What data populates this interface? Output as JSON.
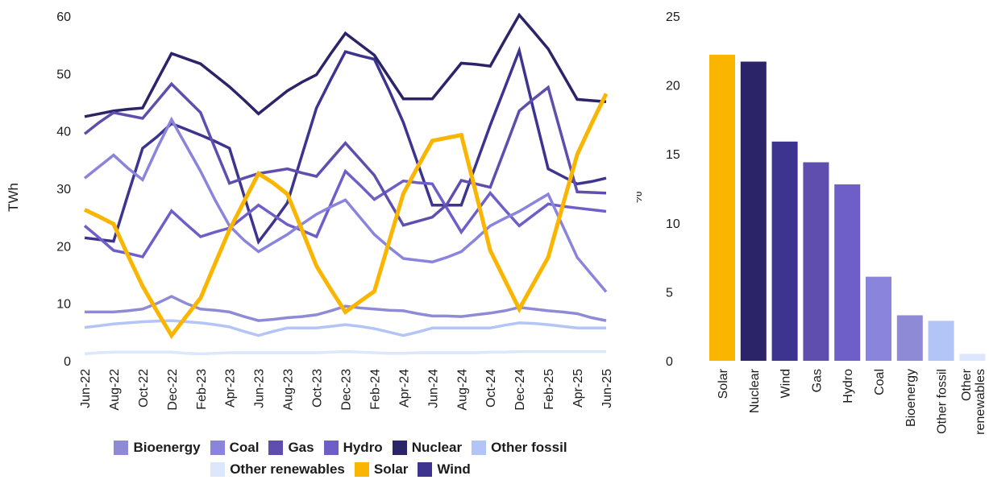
{
  "chart_data": [
    {
      "type": "line",
      "ylabel": "TWh",
      "ylim": [
        0,
        60
      ],
      "yticks": [
        0,
        10,
        20,
        30,
        40,
        50,
        60
      ],
      "x": [
        "Jun-22",
        "Jul-22",
        "Aug-22",
        "Sep-22",
        "Oct-22",
        "Nov-22",
        "Dec-22",
        "Jan-23",
        "Feb-23",
        "Mar-23",
        "Apr-23",
        "May-23",
        "Jun-23",
        "Jul-23",
        "Aug-23",
        "Sep-23",
        "Oct-23",
        "Nov-23",
        "Dec-23",
        "Jan-24",
        "Feb-24",
        "Mar-24",
        "Apr-24",
        "May-24",
        "Jun-24",
        "Jul-24",
        "Aug-24",
        "Sep-24",
        "Oct-24",
        "Nov-24",
        "Dec-24",
        "Jan-25",
        "Feb-25",
        "Mar-25",
        "Apr-25",
        "May-25",
        "Jun-25"
      ],
      "xticklabels": [
        "Jun-22",
        "Aug-22",
        "Oct-22",
        "Dec-22",
        "Feb-23",
        "Apr-23",
        "Jun-23",
        "Aug-23",
        "Oct-23",
        "Dec-23",
        "Feb-24",
        "Apr-24",
        "Jun-24",
        "Aug-24",
        "Oct-24",
        "Dec-24",
        "Feb-25",
        "Apr-25",
        "Jun-25"
      ],
      "grid": false,
      "legend_position": "bottom",
      "series": [
        {
          "name": "Bioenergy",
          "color": "#8e8ad6",
          "values": [
            8.5,
            8.5,
            8.5,
            8.7,
            9,
            10,
            11.2,
            10,
            9,
            8.8,
            8.5,
            7.7,
            7,
            7.2,
            7.5,
            7.7,
            8,
            8.7,
            9.5,
            9.2,
            9,
            8.8,
            8.7,
            8.2,
            7.8,
            7.8,
            7.7,
            8,
            8.3,
            8.7,
            9.3,
            9,
            8.7,
            8.5,
            8.2,
            7.5,
            7
          ]
        },
        {
          "name": "Coal",
          "color": "#8a84dc",
          "values": [
            31.8,
            33.8,
            35.8,
            33.5,
            31.5,
            37,
            42,
            37.5,
            33,
            28,
            23.5,
            21,
            19,
            20.5,
            22,
            23.8,
            25.5,
            26.8,
            28,
            25,
            22,
            19.8,
            17.8,
            17.5,
            17.2,
            18,
            19,
            21.2,
            23.5,
            24.8,
            26,
            27.5,
            29,
            23.5,
            18,
            15,
            12
          ]
        },
        {
          "name": "Gas",
          "color": "#5f4ead",
          "values": [
            39.5,
            41.5,
            43.2,
            42.7,
            42.2,
            45.2,
            48.2,
            45.7,
            43.2,
            37,
            30.9,
            31.8,
            32.6,
            33,
            33.4,
            32.7,
            32.1,
            35,
            37.9,
            35.1,
            32.3,
            27.9,
            23.6,
            24.3,
            25,
            27.2,
            31.4,
            30.8,
            30.2,
            36.8,
            43.5,
            45.6,
            47.6,
            38.5,
            29.4,
            29.3,
            29.2
          ]
        },
        {
          "name": "Hydro",
          "color": "#6e5ec8",
          "values": [
            23.5,
            21.4,
            19.2,
            18.7,
            18.1,
            22.1,
            26.1,
            23.8,
            21.6,
            22.4,
            23.1,
            25.1,
            27.1,
            25.4,
            23.7,
            22.7,
            21.6,
            27.3,
            33,
            30.6,
            28.1,
            29.7,
            31.3,
            31,
            30.8,
            26.6,
            22.4,
            25.8,
            29.2,
            26.3,
            23.5,
            25.4,
            27.3,
            26.9,
            26.6,
            26.3,
            26
          ]
        },
        {
          "name": "Nuclear",
          "color": "#2b2468",
          "values": [
            42.5,
            43,
            43.5,
            43.8,
            44,
            48.8,
            53.5,
            52.6,
            51.7,
            49.7,
            47.7,
            45.4,
            43,
            45,
            47,
            48.5,
            49.8,
            53.5,
            57,
            55.1,
            53.2,
            49.4,
            45.6,
            45.6,
            45.6,
            48.7,
            51.8,
            51.6,
            51.3,
            55.8,
            60.2,
            57.3,
            54.3,
            49.9,
            45.5,
            45.3,
            45.1
          ]
        },
        {
          "name": "Other fossil",
          "color": "#b3c5f7",
          "values": [
            5.8,
            6.1,
            6.4,
            6.6,
            6.8,
            6.9,
            7,
            6.8,
            6.6,
            6.3,
            5.9,
            5.1,
            4.4,
            5.1,
            5.7,
            5.7,
            5.7,
            6,
            6.3,
            6,
            5.6,
            5,
            4.4,
            5,
            5.7,
            5.7,
            5.7,
            5.7,
            5.7,
            6.2,
            6.6,
            6.5,
            6.3,
            6,
            5.7,
            5.7,
            5.7
          ]
        },
        {
          "name": "Other renewables",
          "color": "#dce6fc",
          "values": [
            1.2,
            1.4,
            1.5,
            1.5,
            1.5,
            1.5,
            1.5,
            1.3,
            1.2,
            1.3,
            1.4,
            1.4,
            1.4,
            1.4,
            1.4,
            1.4,
            1.4,
            1.5,
            1.6,
            1.5,
            1.4,
            1.3,
            1.3,
            1.4,
            1.4,
            1.4,
            1.4,
            1.4,
            1.5,
            1.5,
            1.6,
            1.6,
            1.6,
            1.6,
            1.6,
            1.6,
            1.6
          ]
        },
        {
          "name": "Solar",
          "color": "#f9b500",
          "values": [
            26.3,
            25.1,
            23.8,
            18.3,
            13,
            8.6,
            4.4,
            7.7,
            10.9,
            16.9,
            22.8,
            27.7,
            32.6,
            31,
            29,
            22.8,
            16.5,
            12.4,
            8.5,
            10.3,
            12.1,
            20.6,
            29.1,
            33.8,
            38.3,
            38.8,
            39.3,
            29.3,
            19.2,
            14.1,
            9,
            13.5,
            18,
            27,
            35.9,
            41.3,
            46.5
          ]
        },
        {
          "name": "Wind",
          "color": "#3d3490",
          "values": [
            21.4,
            21.1,
            20.8,
            29,
            37,
            39,
            41.3,
            40.3,
            39.3,
            38.2,
            37,
            28.8,
            20.7,
            24,
            27.5,
            35.8,
            44,
            49,
            53.8,
            53.1,
            52.5,
            47.2,
            41.5,
            34.3,
            27.1,
            27.1,
            27.1,
            34.1,
            41,
            47.5,
            54,
            43.6,
            33.4,
            32.1,
            30.8,
            31.2,
            31.8
          ]
        }
      ]
    },
    {
      "type": "bar",
      "ylabel": "%",
      "ylim": [
        0,
        25
      ],
      "yticks": [
        0,
        5,
        10,
        15,
        20,
        25
      ],
      "grid": false,
      "categories": [
        "Solar",
        "Nuclear",
        "Wind",
        "Gas",
        "Hydro",
        "Coal",
        "Bioenergy",
        "Other fossil",
        "Other renewables"
      ],
      "tick_lines": [
        [
          "Solar"
        ],
        [
          "Nuclear"
        ],
        [
          "Wind"
        ],
        [
          "Gas"
        ],
        [
          "Hydro"
        ],
        [
          "Coal"
        ],
        [
          "Bioenergy"
        ],
        [
          "Other fossil"
        ],
        [
          "Other",
          "renewables"
        ]
      ],
      "values": [
        22.2,
        21.7,
        15.9,
        14.4,
        12.8,
        6.1,
        3.3,
        2.9,
        0.5
      ],
      "colors": [
        "#f9b500",
        "#2b2468",
        "#3d3490",
        "#5f4ead",
        "#6e5ec8",
        "#8a84dc",
        "#8e8ad6",
        "#b3c5f7",
        "#dce6fc"
      ]
    }
  ],
  "legend": {
    "rows": [
      [
        {
          "label": "Bioenergy",
          "color": "#8e8ad6"
        },
        {
          "label": "Coal",
          "color": "#8a84dc"
        },
        {
          "label": "Gas",
          "color": "#5f4ead"
        },
        {
          "label": "Hydro",
          "color": "#6e5ec8"
        },
        {
          "label": "Nuclear",
          "color": "#2b2468"
        },
        {
          "label": "Other fossil",
          "color": "#b3c5f7"
        }
      ],
      [
        {
          "label": "Other renewables",
          "color": "#dce6fc"
        },
        {
          "label": "Solar",
          "color": "#f9b500"
        },
        {
          "label": "Wind",
          "color": "#3d3490"
        }
      ]
    ]
  }
}
